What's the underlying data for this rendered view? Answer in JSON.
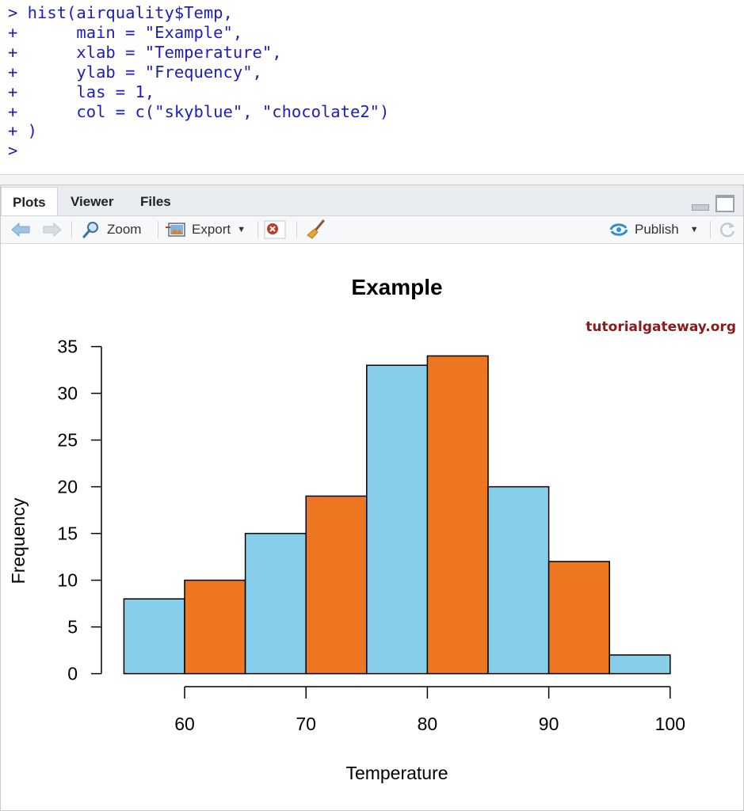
{
  "console": {
    "lines": [
      "> hist(airquality$Temp,",
      "+      main = \"Example\",",
      "+      xlab = \"Temperature\",",
      "+      ylab = \"Frequency\",",
      "+      las = 1,",
      "+      col = c(\"skyblue\", \"chocolate2\")",
      "+ )",
      ">"
    ]
  },
  "tabs": [
    "Plots",
    "Viewer",
    "Files"
  ],
  "toolbar": {
    "zoom_label": "Zoom",
    "export_label": "Export",
    "publish_label": "Publish"
  },
  "watermark": "tutorialgateway.org",
  "colors": {
    "code": "#1d1dbd",
    "skyblue": "#87ceeb",
    "chocolate2": "#ee7621",
    "watermark": "#8b1a1a"
  },
  "chart_data": {
    "type": "bar",
    "title": "Example",
    "xlabel": "Temperature",
    "ylabel": "Frequency",
    "bin_edges": [
      55,
      60,
      65,
      70,
      75,
      80,
      85,
      90,
      95,
      100
    ],
    "values": [
      8,
      10,
      15,
      19,
      33,
      34,
      20,
      12,
      2
    ],
    "bar_colors": [
      "skyblue",
      "chocolate2"
    ],
    "xlim": [
      55,
      100
    ],
    "ylim": [
      0,
      35
    ],
    "x_ticks": [
      60,
      70,
      80,
      90,
      100
    ],
    "y_ticks": [
      0,
      5,
      10,
      15,
      20,
      25,
      30,
      35
    ],
    "grid": false,
    "legend": "none"
  }
}
